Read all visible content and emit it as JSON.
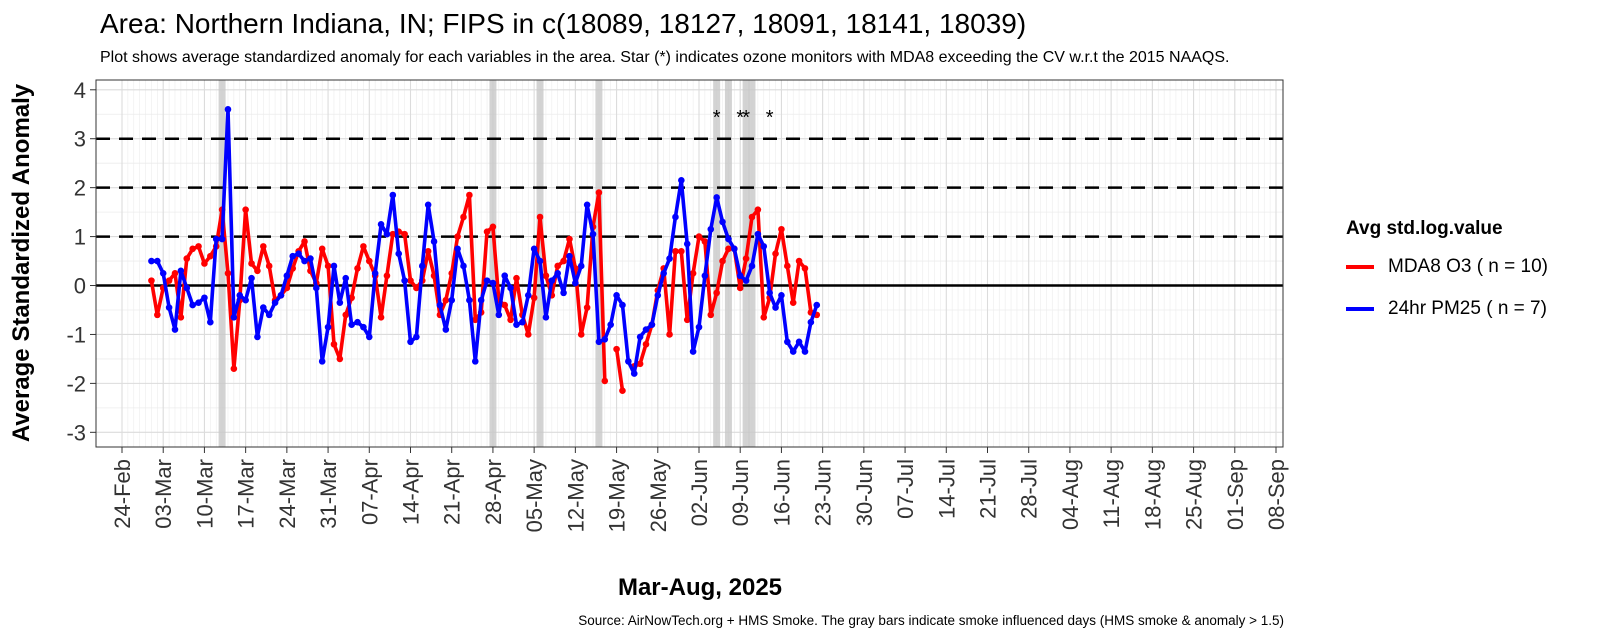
{
  "title": "Area: Northern Indiana, IN; FIPS in c(18089, 18127, 18091, 18141, 18039)",
  "subtitle": "Plot shows average standardized anomaly for each variables in the area. Star (*) indicates ozone monitors with MDA8 exceeding the CV w.r.t the 2015 NAAQS.",
  "caption": "Source: AirNowTech.org + HMS Smoke. The gray bars indicate smoke influenced days (HMS smoke & anomaly > 1.5)",
  "chart_data": {
    "type": "line",
    "xlabel": "Mar-Aug, 2025",
    "ylabel": "Average Standardized Anomaly",
    "ylim": [
      -3.3,
      4.2
    ],
    "yticks": [
      -3,
      -2,
      -1,
      0,
      1,
      2,
      3,
      4
    ],
    "x_start": "2025-02-24",
    "x_end": "2025-09-08",
    "xticks": [
      "24-Feb",
      "03-Mar",
      "10-Mar",
      "17-Mar",
      "24-Mar",
      "31-Mar",
      "07-Apr",
      "14-Apr",
      "21-Apr",
      "28-Apr",
      "05-May",
      "12-May",
      "19-May",
      "26-May",
      "02-Jun",
      "09-Jun",
      "16-Jun",
      "23-Jun",
      "30-Jun",
      "07-Jul",
      "14-Jul",
      "21-Jul",
      "28-Jul",
      "04-Aug",
      "11-Aug",
      "18-Aug",
      "25-Aug",
      "01-Sep",
      "08-Sep"
    ],
    "hlines": [
      {
        "y": 0,
        "style": "solid"
      },
      {
        "y": 1,
        "style": "dashed"
      },
      {
        "y": 2,
        "style": "dashed"
      },
      {
        "y": 3,
        "style": "dashed"
      }
    ],
    "smoke_days": [
      "2025-03-13",
      "2025-04-28",
      "2025-05-06",
      "2025-05-16",
      "2025-06-05",
      "2025-06-07",
      "2025-06-10",
      "2025-06-11"
    ],
    "star_days": [
      "2025-06-05",
      "2025-06-09",
      "2025-06-10",
      "2025-06-14"
    ],
    "star_label": "*",
    "legend_title": "Avg std.log.value",
    "series": [
      {
        "name": "MDA8 O3 ( n = 10)",
        "color": "#ff0000",
        "start_date": "2025-03-01",
        "values": [
          0.1,
          -0.6,
          -0.05,
          0.1,
          0.25,
          -0.65,
          0.55,
          0.75,
          0.8,
          0.45,
          0.6,
          0.8,
          1.55,
          0.25,
          -1.7,
          -0.3,
          1.55,
          0.45,
          0.3,
          0.8,
          0.4,
          -0.3,
          -0.2,
          -0.05,
          0.35,
          0.7,
          0.9,
          0.3,
          0.05,
          0.75,
          0.4,
          -1.2,
          -1.5,
          -0.6,
          -0.25,
          0.35,
          0.8,
          0.5,
          0.2,
          -0.65,
          0.2,
          1.05,
          1.1,
          1.05,
          0.1,
          -0.05,
          0.1,
          0.7,
          0.2,
          -0.6,
          -0.3,
          0.25,
          1.0,
          1.4,
          1.85,
          -0.7,
          -0.55,
          1.1,
          1.2,
          -0.3,
          -0.4,
          -0.7,
          0.15,
          -0.6,
          -1.0,
          -0.25,
          1.4,
          0.2,
          -0.2,
          0.4,
          0.5,
          0.95,
          0.35,
          -1.0,
          -0.45,
          1.2,
          1.9,
          -1.95,
          null,
          -1.3,
          -2.15,
          null,
          -1.65,
          -1.6,
          -1.2,
          -0.8,
          -0.1,
          0.35,
          -1.0,
          0.7,
          0.7,
          -0.7,
          0.25,
          1.0,
          0.9,
          -0.6,
          -0.15,
          0.5,
          0.75,
          0.75,
          -0.05,
          0.55,
          1.4,
          1.55,
          -0.65,
          -0.25,
          0.65,
          1.15,
          0.4,
          -0.35,
          0.5,
          0.35,
          -0.55,
          -0.6
        ]
      },
      {
        "name": "24hr PM25 ( n = 7)",
        "color": "#0000ff",
        "start_date": "2025-03-01",
        "values": [
          0.5,
          0.5,
          0.25,
          -0.45,
          -0.9,
          0.3,
          -0.05,
          -0.4,
          -0.35,
          -0.25,
          -0.75,
          0.95,
          0.95,
          3.6,
          -0.65,
          -0.2,
          -0.3,
          0.15,
          -1.05,
          -0.45,
          -0.6,
          -0.35,
          -0.2,
          0.2,
          0.6,
          0.65,
          0.5,
          0.55,
          -0.05,
          -1.55,
          -0.85,
          0.4,
          -0.35,
          0.15,
          -0.8,
          -0.75,
          -0.85,
          -1.05,
          0.25,
          1.25,
          1.05,
          1.85,
          0.65,
          0.1,
          -1.15,
          -1.05,
          0.4,
          1.65,
          0.9,
          -0.4,
          -0.9,
          -0.3,
          0.75,
          0.4,
          -0.3,
          -1.55,
          -0.3,
          0.1,
          0.05,
          -0.6,
          0.2,
          -0.05,
          -0.8,
          -0.75,
          -0.2,
          0.75,
          0.5,
          -0.65,
          0.1,
          0.25,
          -0.15,
          0.6,
          0.05,
          0.4,
          1.65,
          1.05,
          -1.15,
          -1.1,
          -0.8,
          -0.2,
          -0.4,
          -1.55,
          -1.8,
          -1.05,
          -0.9,
          -0.8,
          -0.2,
          0.25,
          0.55,
          1.4,
          2.15,
          0.85,
          -1.35,
          -0.85,
          0.2,
          1.15,
          1.8,
          1.3,
          0.95,
          0.75,
          0.2,
          0.1,
          0.4,
          1.05,
          0.8,
          -0.15,
          -0.45,
          -0.2,
          -1.15,
          -1.35,
          -1.15,
          -1.35,
          -0.75,
          -0.4
        ]
      }
    ]
  }
}
